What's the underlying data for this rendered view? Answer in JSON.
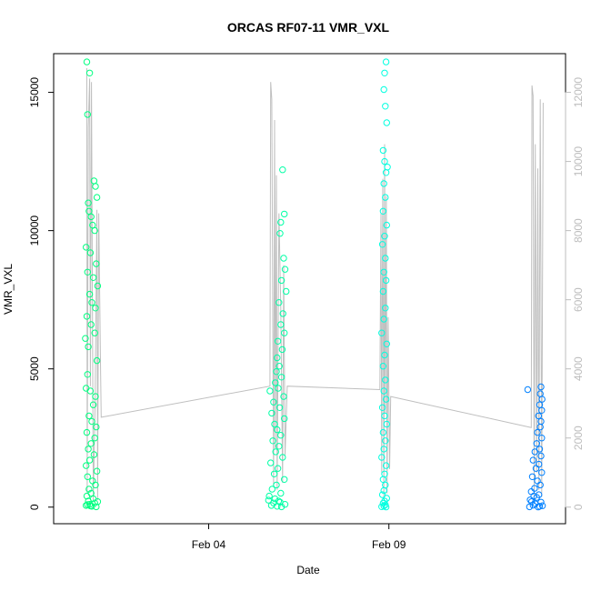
{
  "chart_data": {
    "type": "scatter",
    "title": "ORCAS RF07-11 VMR_VXL",
    "xlabel": "Date",
    "ylabel": "VMR_VXL",
    "x_ticks": [
      {
        "value": 4.0,
        "label": "Feb 04"
      },
      {
        "value": 9.0,
        "label": "Feb 09"
      }
    ],
    "xlim": [
      -0.3,
      13.9
    ],
    "ylim": [
      -600,
      16400
    ],
    "y_ticks": [
      0,
      5000,
      10000,
      15000
    ],
    "y2lim": [
      -480,
      13120
    ],
    "y2_ticks": [
      0,
      2000,
      4000,
      6000,
      8000,
      10000,
      12000
    ],
    "grid": false,
    "series": [
      {
        "color": "#00FF80",
        "x_range": [
          0.55,
          1.05
        ],
        "points": [
          [
            0.62,
            16100
          ],
          [
            0.64,
            14200
          ],
          [
            0.7,
            15700
          ],
          [
            0.82,
            11800
          ],
          [
            0.86,
            11600
          ],
          [
            0.9,
            11200
          ],
          [
            0.66,
            11000
          ],
          [
            0.68,
            10700
          ],
          [
            0.74,
            10500
          ],
          [
            0.78,
            10200
          ],
          [
            0.84,
            10000
          ],
          [
            0.6,
            9400
          ],
          [
            0.72,
            9200
          ],
          [
            0.88,
            8800
          ],
          [
            0.64,
            8500
          ],
          [
            0.8,
            8300
          ],
          [
            0.92,
            8000
          ],
          [
            0.7,
            7700
          ],
          [
            0.76,
            7400
          ],
          [
            0.86,
            7200
          ],
          [
            0.62,
            6900
          ],
          [
            0.74,
            6600
          ],
          [
            0.84,
            6300
          ],
          [
            0.58,
            6100
          ],
          [
            0.66,
            5800
          ],
          [
            0.9,
            5300
          ],
          [
            0.64,
            4800
          ],
          [
            0.6,
            4300
          ],
          [
            0.72,
            4200
          ],
          [
            0.86,
            4000
          ],
          [
            0.8,
            3700
          ],
          [
            0.68,
            3300
          ],
          [
            0.76,
            3100
          ],
          [
            0.88,
            2900
          ],
          [
            0.62,
            2700
          ],
          [
            0.84,
            2500
          ],
          [
            0.74,
            2300
          ],
          [
            0.66,
            2100
          ],
          [
            0.82,
            1900
          ],
          [
            0.7,
            1700
          ],
          [
            0.6,
            1500
          ],
          [
            0.9,
            1300
          ],
          [
            0.64,
            1100
          ],
          [
            0.78,
            950
          ],
          [
            0.86,
            800
          ],
          [
            0.68,
            650
          ],
          [
            0.74,
            500
          ],
          [
            0.62,
            400
          ],
          [
            0.8,
            300
          ],
          [
            0.66,
            220
          ],
          [
            0.84,
            150
          ],
          [
            0.7,
            100
          ],
          [
            0.6,
            60
          ],
          [
            0.76,
            30
          ],
          [
            0.88,
            10
          ],
          [
            0.92,
            200
          ],
          [
            0.64,
            90
          ],
          [
            0.72,
            45
          ]
        ]
      },
      {
        "color": "#00FFA6",
        "x_range": [
          5.6,
          6.3
        ],
        "points": [
          [
            6.05,
            12200
          ],
          [
            6.1,
            10600
          ],
          [
            6.0,
            10300
          ],
          [
            5.98,
            9900
          ],
          [
            6.08,
            9000
          ],
          [
            6.12,
            8600
          ],
          [
            6.02,
            8200
          ],
          [
            6.15,
            7800
          ],
          [
            5.95,
            7400
          ],
          [
            6.06,
            7000
          ],
          [
            6.0,
            6600
          ],
          [
            6.1,
            6300
          ],
          [
            5.92,
            6000
          ],
          [
            6.04,
            5700
          ],
          [
            5.9,
            5400
          ],
          [
            5.96,
            5100
          ],
          [
            5.88,
            4900
          ],
          [
            6.02,
            4700
          ],
          [
            5.85,
            4500
          ],
          [
            5.93,
            4300
          ],
          [
            5.7,
            4200
          ],
          [
            6.08,
            4000
          ],
          [
            5.8,
            3800
          ],
          [
            5.97,
            3600
          ],
          [
            5.75,
            3400
          ],
          [
            6.1,
            3200
          ],
          [
            5.83,
            3000
          ],
          [
            5.9,
            2800
          ],
          [
            6.0,
            2600
          ],
          [
            5.78,
            2400
          ],
          [
            5.95,
            2200
          ],
          [
            5.86,
            2000
          ],
          [
            6.05,
            1800
          ],
          [
            5.72,
            1600
          ],
          [
            5.92,
            1400
          ],
          [
            5.82,
            1200
          ],
          [
            6.1,
            1000
          ],
          [
            5.88,
            800
          ],
          [
            5.76,
            650
          ],
          [
            6.0,
            500
          ],
          [
            5.68,
            400
          ],
          [
            5.84,
            300
          ],
          [
            5.94,
            220
          ],
          [
            5.8,
            150
          ],
          [
            6.12,
            100
          ],
          [
            5.74,
            60
          ],
          [
            5.9,
            30
          ],
          [
            6.02,
            10
          ],
          [
            5.66,
            250
          ],
          [
            5.98,
            180
          ]
        ]
      },
      {
        "color": "#00FFE0",
        "x_range": [
          8.6,
          9.1
        ],
        "points": [
          [
            8.92,
            16100
          ],
          [
            8.88,
            15700
          ],
          [
            8.86,
            15100
          ],
          [
            8.9,
            14500
          ],
          [
            8.94,
            13900
          ],
          [
            8.84,
            12900
          ],
          [
            8.88,
            12500
          ],
          [
            8.96,
            12300
          ],
          [
            8.92,
            12100
          ],
          [
            8.86,
            11700
          ],
          [
            8.9,
            11200
          ],
          [
            8.84,
            10700
          ],
          [
            8.94,
            10200
          ],
          [
            8.88,
            9800
          ],
          [
            8.82,
            9500
          ],
          [
            8.9,
            9000
          ],
          [
            8.86,
            8500
          ],
          [
            8.92,
            8200
          ],
          [
            8.84,
            7800
          ],
          [
            8.9,
            7200
          ],
          [
            8.86,
            6800
          ],
          [
            8.8,
            6300
          ],
          [
            8.94,
            5900
          ],
          [
            8.88,
            5500
          ],
          [
            8.84,
            5100
          ],
          [
            8.9,
            4600
          ],
          [
            8.86,
            4200
          ],
          [
            8.92,
            3900
          ],
          [
            8.82,
            3600
          ],
          [
            8.88,
            3300
          ],
          [
            8.94,
            3000
          ],
          [
            8.84,
            2700
          ],
          [
            8.9,
            2400
          ],
          [
            8.86,
            2100
          ],
          [
            8.8,
            1800
          ],
          [
            8.92,
            1500
          ],
          [
            8.88,
            1200
          ],
          [
            8.84,
            1000
          ],
          [
            8.9,
            800
          ],
          [
            8.86,
            600
          ],
          [
            8.82,
            450
          ],
          [
            8.94,
            320
          ],
          [
            8.88,
            220
          ],
          [
            8.84,
            140
          ],
          [
            8.9,
            80
          ],
          [
            8.86,
            40
          ],
          [
            8.8,
            15
          ],
          [
            8.92,
            5
          ]
        ]
      },
      {
        "color": "#0080FF",
        "x_range": [
          12.8,
          13.3
        ],
        "points": [
          [
            12.85,
            4250
          ],
          [
            13.22,
            4350
          ],
          [
            13.2,
            4100
          ],
          [
            13.25,
            3900
          ],
          [
            13.18,
            3700
          ],
          [
            13.24,
            3500
          ],
          [
            13.15,
            3300
          ],
          [
            13.22,
            3100
          ],
          [
            13.2,
            2900
          ],
          [
            13.12,
            2700
          ],
          [
            13.24,
            2500
          ],
          [
            13.1,
            2300
          ],
          [
            13.18,
            2100
          ],
          [
            13.05,
            2000
          ],
          [
            13.22,
            1850
          ],
          [
            13.0,
            1700
          ],
          [
            13.16,
            1550
          ],
          [
            13.08,
            1400
          ],
          [
            13.24,
            1250
          ],
          [
            12.98,
            1100
          ],
          [
            13.12,
            950
          ],
          [
            13.2,
            800
          ],
          [
            13.04,
            680
          ],
          [
            12.95,
            560
          ],
          [
            13.16,
            450
          ],
          [
            13.1,
            350
          ],
          [
            12.92,
            260
          ],
          [
            13.22,
            180
          ],
          [
            13.06,
            120
          ],
          [
            13.0,
            70
          ],
          [
            13.18,
            30
          ],
          [
            12.9,
            10
          ],
          [
            13.14,
            5
          ],
          [
            13.26,
            50
          ],
          [
            12.96,
            200
          ],
          [
            13.02,
            400
          ]
        ]
      }
    ],
    "right_axis_series": {
      "color": "#bfbfbf",
      "x": [
        0.62,
        0.63,
        0.66,
        0.7,
        0.72,
        0.75,
        0.8,
        0.85,
        0.9,
        0.92,
        0.95,
        1.0,
        1.02,
        5.7,
        5.72,
        5.75,
        5.8,
        5.83,
        5.85,
        5.88,
        5.9,
        5.95,
        6.0,
        6.05,
        6.08,
        6.12,
        6.18,
        8.75,
        8.78,
        8.8,
        8.83,
        8.86,
        8.88,
        8.9,
        8.93,
        8.95,
        8.98,
        9.02,
        9.05,
        12.95,
        12.97,
        13.0,
        13.03,
        13.06,
        13.1,
        13.13,
        13.16,
        13.2,
        13.24,
        13.28
      ],
      "y": [
        12700,
        400,
        11000,
        12400,
        3500,
        12300,
        200,
        3000,
        8600,
        200,
        8500,
        4200,
        2600,
        3500,
        12300,
        11800,
        600,
        11200,
        1700,
        9600,
        500,
        8500,
        5800,
        700,
        7000,
        1500,
        3500,
        3400,
        8500,
        1000,
        9500,
        200,
        10500,
        2700,
        9000,
        400,
        5500,
        1100,
        3200,
        2300,
        12200,
        11900,
        200,
        10500,
        1000,
        9800,
        500,
        11800,
        300,
        11700
      ]
    }
  }
}
